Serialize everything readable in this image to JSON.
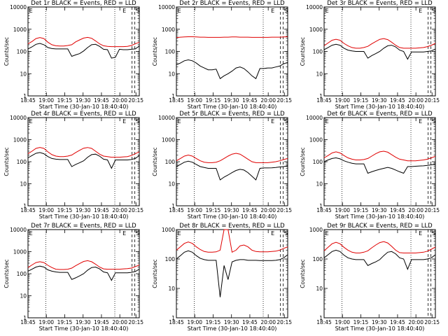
{
  "chart_data": [
    {
      "type": "line",
      "title": "Det 1r BLACK = Events, RED = LLD",
      "ylabel": "Counts/sec",
      "xlabel": "Start Time (30-Jan-10 18:40:40)",
      "yscale": "log",
      "ylim": [
        1,
        10000
      ],
      "x_tick_labels": [
        "18:45",
        "19:00",
        "19:15",
        "19:30",
        "19:45",
        "20:00",
        "20:15"
      ],
      "y_tick_labels": [
        "1",
        "10",
        "100",
        "1000",
        "10000"
      ],
      "markers": [
        "E",
        "S"
      ],
      "series": [
        {
          "color": "#000000",
          "values": [
            130,
            160,
            210,
            230,
            200,
            150,
            135,
            130,
            130,
            130,
            130,
            60,
            70,
            80,
            105,
            150,
            200,
            210,
            170,
            125,
            120,
            50,
            55,
            125,
            120,
            120,
            125,
            130,
            175
          ]
        },
        {
          "color": "#e00000",
          "values": [
            220,
            280,
            380,
            420,
            380,
            260,
            200,
            180,
            175,
            175,
            185,
            200,
            270,
            330,
            400,
            430,
            390,
            300,
            220,
            180,
            170,
            165,
            165,
            165,
            165,
            170,
            185,
            220,
            260
          ]
        }
      ]
    },
    {
      "type": "line",
      "title": "Det 2r BLACK = Events, RED = LLD",
      "ylabel": "Counts/sec",
      "xlabel": "Start Time (30-Jan-10 18:40:40)",
      "yscale": "log",
      "ylim": [
        1,
        10000
      ],
      "x_tick_labels": [
        "18:45",
        "19:00",
        "19:15",
        "19:30",
        "19:45",
        "20:00",
        "20:15"
      ],
      "y_tick_labels": [
        "1",
        "10",
        "100",
        "1000",
        "10000"
      ],
      "markers": [
        "E",
        "S"
      ],
      "series": [
        {
          "color": "#000000",
          "values": [
            25,
            30,
            38,
            42,
            38,
            30,
            22,
            18,
            15,
            15,
            16,
            6,
            8,
            10,
            13,
            18,
            20,
            17,
            12,
            8,
            6,
            17,
            17,
            18,
            18,
            20,
            22,
            28,
            32
          ]
        },
        {
          "color": "#e00000",
          "values": [
            420,
            440,
            450,
            460,
            460,
            450,
            440,
            440,
            430,
            430,
            430,
            430,
            440,
            440,
            450,
            450,
            440,
            440,
            440,
            430,
            430,
            430,
            430,
            430,
            440,
            440,
            440,
            450,
            460
          ]
        }
      ]
    },
    {
      "type": "line",
      "title": "Det 3r BLACK = Events, RED = LLD",
      "ylabel": "Counts/sec",
      "xlabel": "Start Time (30-Jan-10 18:40:40)",
      "yscale": "log",
      "ylim": [
        1,
        10000
      ],
      "x_tick_labels": [
        "18:45",
        "19:00",
        "19:15",
        "19:30",
        "19:45",
        "20:00",
        "20:15"
      ],
      "y_tick_labels": [
        "1",
        "10",
        "100",
        "1000",
        "10000"
      ],
      "markers": [
        "E",
        "S"
      ],
      "series": [
        {
          "color": "#000000",
          "values": [
            120,
            150,
            190,
            210,
            190,
            140,
            115,
            105,
            100,
            100,
            100,
            50,
            65,
            80,
            100,
            140,
            180,
            190,
            160,
            115,
            100,
            45,
            95,
            95,
            95,
            95,
            100,
            105,
            130
          ]
        },
        {
          "color": "#e00000",
          "values": [
            180,
            240,
            320,
            350,
            320,
            230,
            180,
            150,
            140,
            140,
            150,
            170,
            220,
            280,
            350,
            380,
            340,
            260,
            190,
            150,
            140,
            140,
            140,
            140,
            145,
            150,
            165,
            190,
            230
          ]
        }
      ]
    },
    {
      "type": "line",
      "title": "Det 4r BLACK = Events, RED = LLD",
      "ylabel": "Counts/sec",
      "xlabel": "Start Time (30-Jan-10 18:40:40)",
      "yscale": "log",
      "ylim": [
        1,
        10000
      ],
      "x_tick_labels": [
        "18:45",
        "19:00",
        "19:15",
        "19:30",
        "19:45",
        "20:00",
        "20:15"
      ],
      "y_tick_labels": [
        "1",
        "10",
        "100",
        "1000",
        "10000"
      ],
      "markers": [
        "E",
        "S"
      ],
      "series": [
        {
          "color": "#000000",
          "values": [
            150,
            190,
            240,
            260,
            230,
            170,
            140,
            130,
            125,
            125,
            125,
            60,
            75,
            90,
            110,
            160,
            210,
            220,
            180,
            130,
            120,
            50,
            120,
            120,
            120,
            120,
            125,
            140,
            190
          ]
        },
        {
          "color": "#e00000",
          "values": [
            230,
            300,
            400,
            440,
            400,
            280,
            210,
            180,
            170,
            170,
            180,
            200,
            260,
            330,
            410,
            440,
            400,
            300,
            220,
            180,
            170,
            160,
            160,
            160,
            165,
            170,
            190,
            230,
            280
          ]
        }
      ]
    },
    {
      "type": "line",
      "title": "Det 5r BLACK = Events, RED = LLD",
      "ylabel": "Counts/sec",
      "xlabel": "Start Time (30-Jan-10 18:40:40)",
      "yscale": "log",
      "ylim": [
        1,
        10000
      ],
      "x_tick_labels": [
        "18:45",
        "19:00",
        "19:15",
        "19:30",
        "19:45",
        "20:00",
        "20:15"
      ],
      "y_tick_labels": [
        "1",
        "10",
        "100",
        "1000",
        "10000"
      ],
      "markers": [
        "E",
        "S"
      ],
      "series": [
        {
          "color": "#000000",
          "values": [
            60,
            75,
            95,
            105,
            95,
            75,
            60,
            55,
            50,
            50,
            50,
            15,
            20,
            25,
            32,
            40,
            45,
            42,
            32,
            22,
            15,
            50,
            52,
            52,
            53,
            55,
            58,
            60,
            65
          ]
        },
        {
          "color": "#e00000",
          "values": [
            110,
            140,
            180,
            200,
            180,
            140,
            110,
            95,
            90,
            90,
            95,
            110,
            140,
            180,
            220,
            240,
            220,
            170,
            130,
            100,
            90,
            90,
            90,
            90,
            95,
            100,
            110,
            125,
            140
          ]
        }
      ]
    },
    {
      "type": "line",
      "title": "Det 6r BLACK = Events, RED = LLD",
      "ylabel": "Counts/sec",
      "xlabel": "Start Time (30-Jan-10 18:40:40)",
      "yscale": "log",
      "ylim": [
        1,
        10000
      ],
      "x_tick_labels": [
        "18:45",
        "19:00",
        "19:15",
        "19:30",
        "19:45",
        "20:00",
        "20:15"
      ],
      "y_tick_labels": [
        "1",
        "10",
        "100",
        "1000",
        "10000"
      ],
      "markers": [
        "E",
        "S"
      ],
      "series": [
        {
          "color": "#000000",
          "values": [
            100,
            120,
            140,
            150,
            135,
            110,
            95,
            85,
            80,
            80,
            80,
            30,
            35,
            40,
            45,
            50,
            55,
            50,
            42,
            35,
            30,
            60,
            60,
            62,
            64,
            65,
            68,
            72,
            80
          ]
        },
        {
          "color": "#e00000",
          "values": [
            150,
            190,
            250,
            280,
            250,
            190,
            150,
            130,
            120,
            120,
            125,
            140,
            180,
            230,
            280,
            300,
            270,
            210,
            160,
            130,
            120,
            110,
            110,
            110,
            115,
            120,
            130,
            150,
            175
          ]
        }
      ]
    },
    {
      "type": "line",
      "title": "Det 7r BLACK = Events, RED = LLD",
      "ylabel": "Counts/sec",
      "xlabel": "Start Time (30-Jan-10 18:40:40)",
      "yscale": "log",
      "ylim": [
        1,
        10000
      ],
      "x_tick_labels": [
        "18:45",
        "19:00",
        "19:15",
        "19:30",
        "19:45",
        "20:00",
        "20:15"
      ],
      "y_tick_labels": [
        "1",
        "10",
        "100",
        "1000",
        "10000"
      ],
      "markers": [
        "E",
        "S"
      ],
      "series": [
        {
          "color": "#000000",
          "values": [
            130,
            160,
            200,
            220,
            200,
            150,
            130,
            120,
            115,
            115,
            115,
            55,
            65,
            80,
            100,
            145,
            190,
            200,
            165,
            120,
            110,
            50,
            110,
            110,
            110,
            110,
            115,
            125,
            160
          ]
        },
        {
          "color": "#e00000",
          "values": [
            190,
            250,
            320,
            350,
            320,
            240,
            190,
            160,
            155,
            155,
            160,
            180,
            230,
            290,
            360,
            390,
            350,
            270,
            200,
            165,
            160,
            160,
            160,
            160,
            165,
            170,
            180,
            210,
            250
          ]
        }
      ]
    },
    {
      "type": "line",
      "title": "Det 8r BLACK = Events, RED = LLD",
      "ylabel": "Counts/sec",
      "xlabel": "Start Time (30-Jan-10 18:40:40)",
      "yscale": "log",
      "ylim": [
        1,
        1000
      ],
      "x_tick_labels": [
        "18:45",
        "19:00",
        "19:15",
        "19:30",
        "19:45",
        "20:00",
        "20:15"
      ],
      "y_tick_labels": [
        "1",
        "10",
        "100",
        "1000"
      ],
      "markers": [
        "E",
        "S"
      ],
      "series": [
        {
          "color": "#000000",
          "values": [
            100,
            130,
            170,
            190,
            170,
            130,
            105,
            95,
            90,
            90,
            90,
            5,
            60,
            20,
            80,
            90,
            95,
            95,
            90,
            90,
            90,
            88,
            88,
            88,
            88,
            90,
            95,
            110,
            140
          ]
        },
        {
          "color": "#e00000",
          "values": [
            200,
            260,
            340,
            380,
            340,
            260,
            210,
            180,
            170,
            170,
            175,
            200,
            1000,
            1000,
            170,
            200,
            280,
            300,
            260,
            200,
            180,
            175,
            175,
            175,
            180,
            185,
            200,
            230,
            260
          ]
        }
      ]
    },
    {
      "type": "line",
      "title": "Det 9r BLACK = Events, RED = LLD",
      "ylabel": "Counts/sec",
      "xlabel": "Start Time (30-Jan-10 18:40:40)",
      "yscale": "log",
      "ylim": [
        1,
        1000
      ],
      "x_tick_labels": [
        "18:45",
        "19:00",
        "19:15",
        "19:30",
        "19:45",
        "20:00",
        "20:15"
      ],
      "y_tick_labels": [
        "1",
        "10",
        "100",
        "1000"
      ],
      "markers": [
        "E",
        "S"
      ],
      "series": [
        {
          "color": "#000000",
          "values": [
            110,
            140,
            180,
            200,
            180,
            135,
            110,
            100,
            95,
            95,
            95,
            60,
            70,
            80,
            95,
            130,
            170,
            180,
            150,
            110,
            100,
            45,
            95,
            95,
            95,
            95,
            100,
            110,
            140
          ]
        },
        {
          "color": "#e00000",
          "values": [
            190,
            250,
            330,
            370,
            330,
            250,
            200,
            170,
            160,
            160,
            170,
            190,
            240,
            300,
            360,
            390,
            350,
            270,
            200,
            165,
            160,
            160,
            160,
            160,
            165,
            170,
            185,
            215,
            255
          ]
        }
      ]
    }
  ]
}
